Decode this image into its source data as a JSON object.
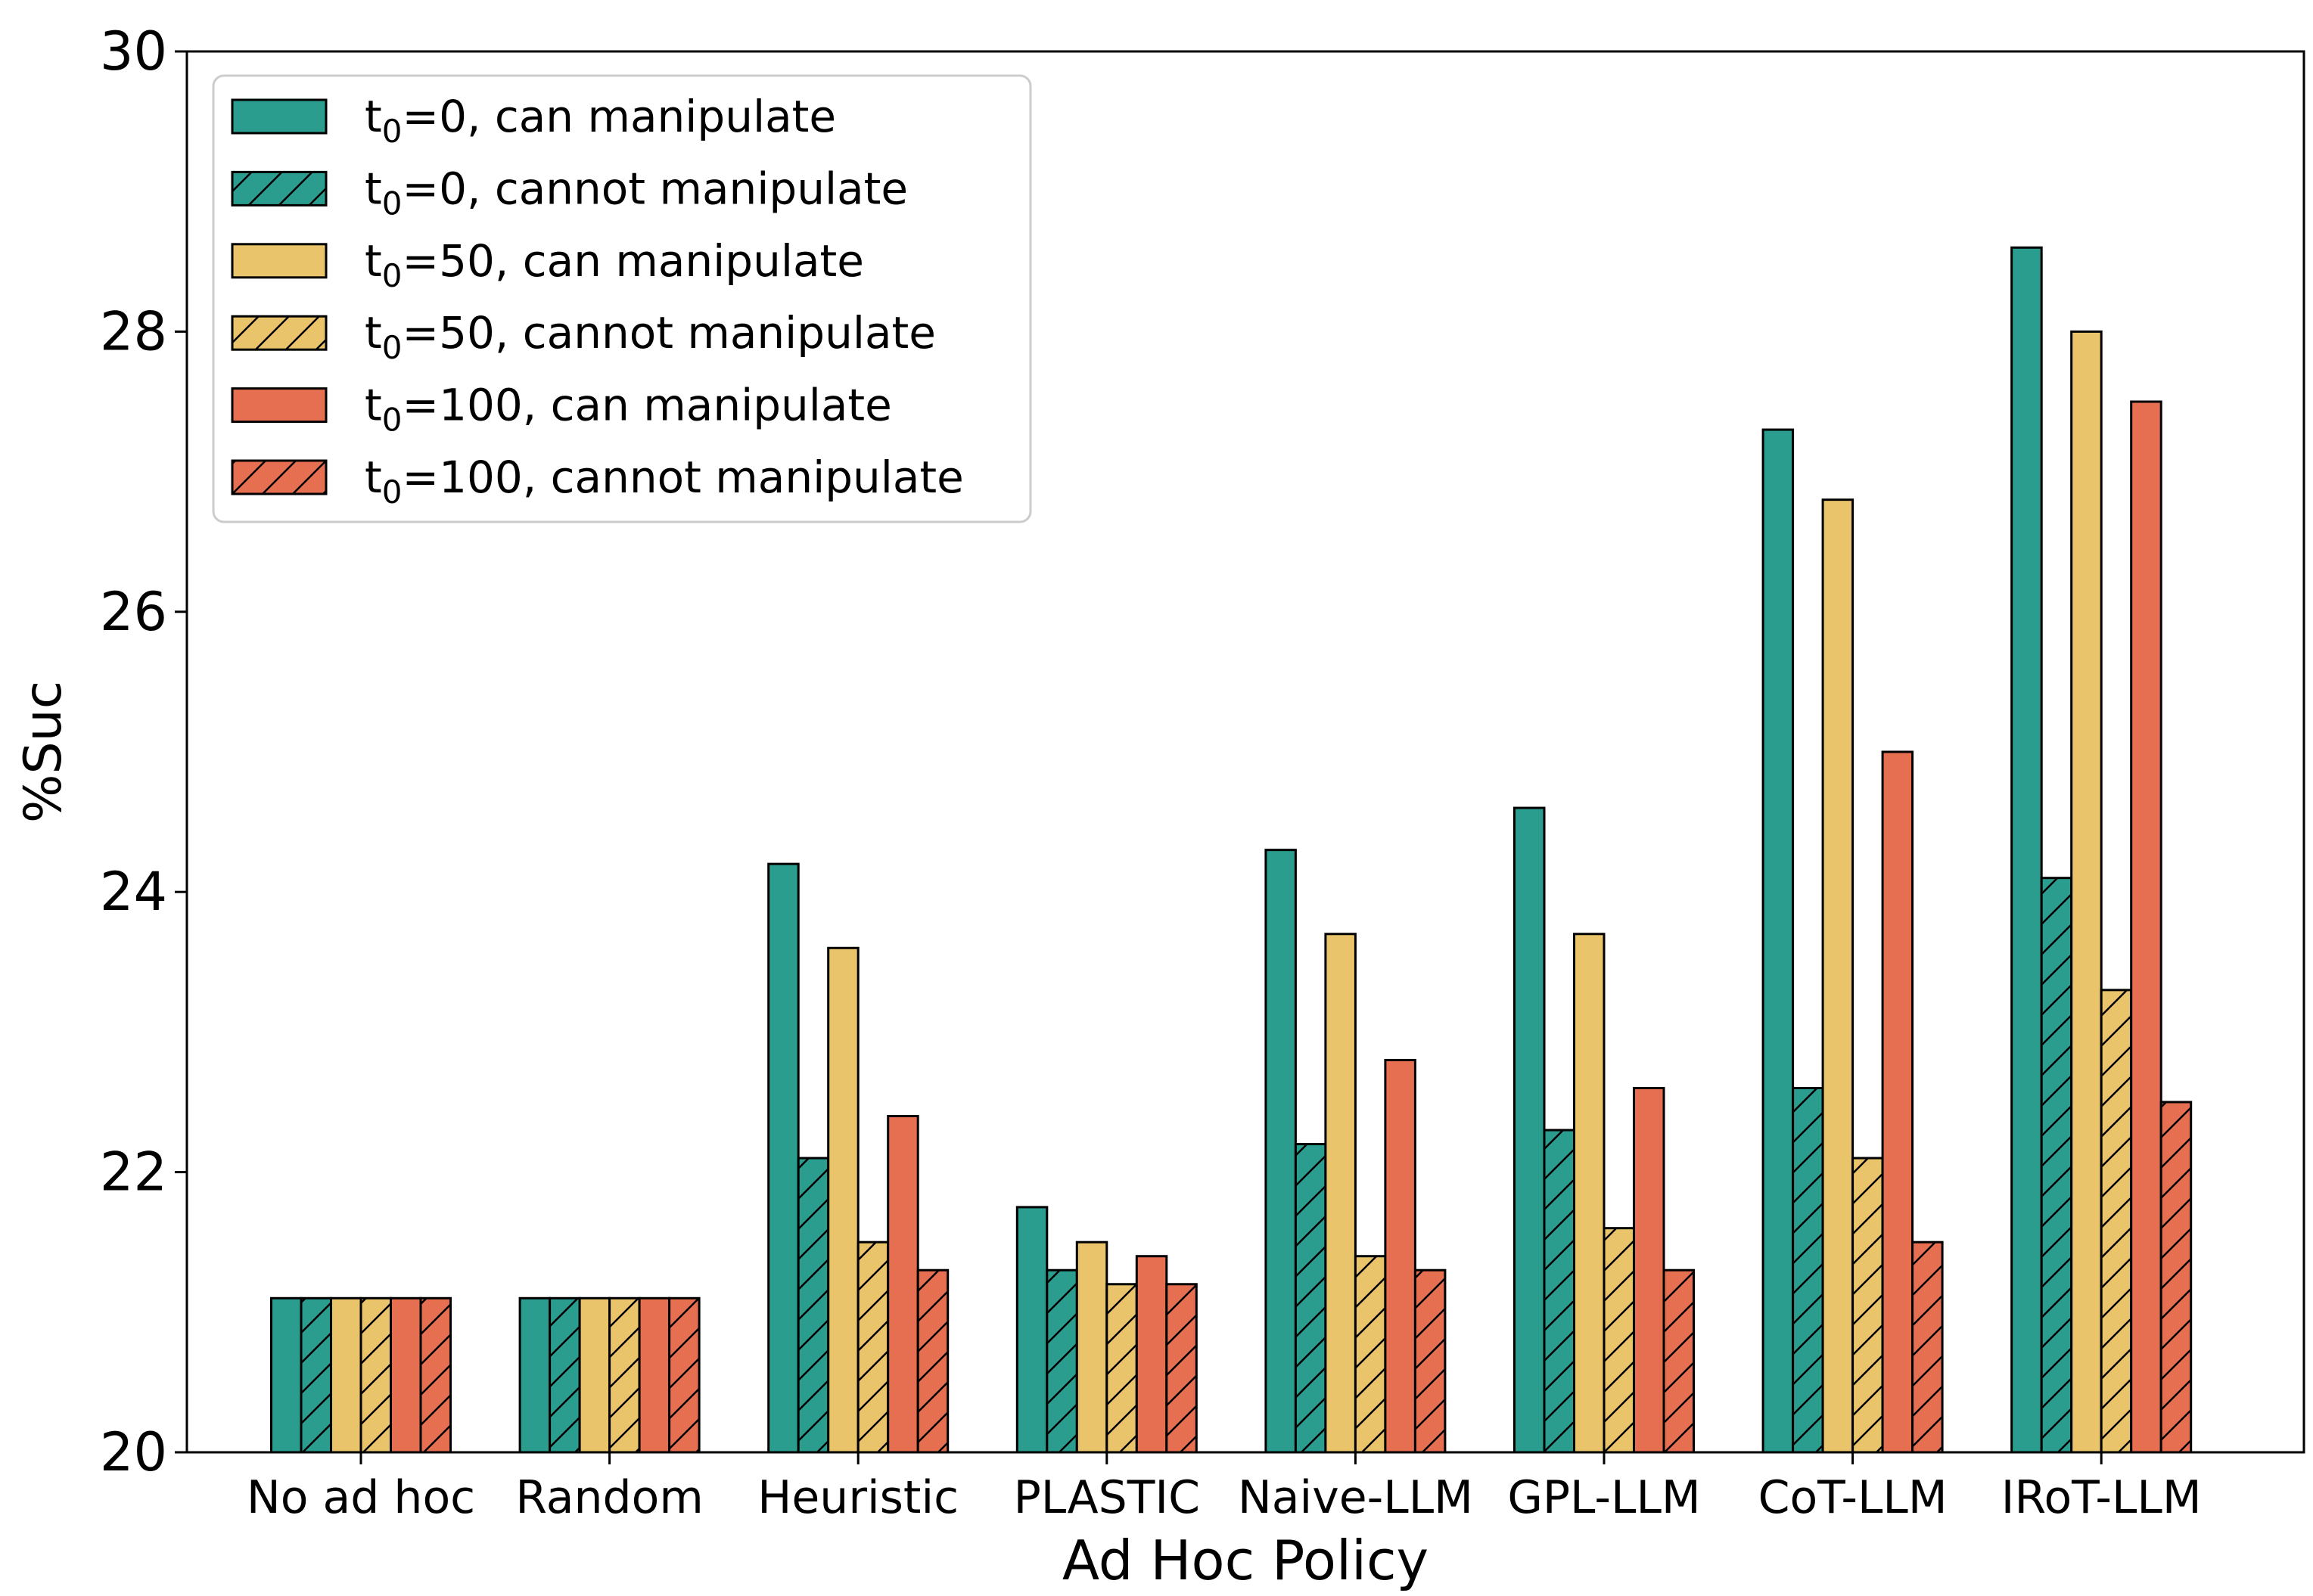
{
  "chart_data": {
    "type": "bar",
    "xlabel": "Ad Hoc Policy",
    "ylabel": "%Suc",
    "ylim": [
      20,
      30
    ],
    "yticks": [
      20,
      22,
      24,
      26,
      28,
      30
    ],
    "grid": false,
    "legend_position": "top-left",
    "categories": [
      "No ad hoc",
      "Random",
      "Heuristic",
      "PLASTIC",
      "Naive-LLM",
      "GPL-LLM",
      "CoT-LLM",
      "IRoT-LLM"
    ],
    "series": [
      {
        "name": "t",
        "sub": "0",
        "rest": "=0, can manipulate",
        "color": "#2a9d8f",
        "hatch": false,
        "values": [
          21.1,
          21.1,
          24.2,
          21.75,
          24.3,
          24.6,
          27.3,
          28.6
        ]
      },
      {
        "name": "t",
        "sub": "0",
        "rest": "=0, cannot manipulate",
        "color": "#2a9d8f",
        "hatch": true,
        "values": [
          21.1,
          21.1,
          22.1,
          21.3,
          22.2,
          22.3,
          22.6,
          24.1
        ]
      },
      {
        "name": "t",
        "sub": "0",
        "rest": "=50, can manipulate",
        "color": "#e9c46a",
        "hatch": false,
        "values": [
          21.1,
          21.1,
          23.6,
          21.5,
          23.7,
          23.7,
          26.8,
          28.0
        ]
      },
      {
        "name": "t",
        "sub": "0",
        "rest": "=50, cannot manipulate",
        "color": "#e9c46a",
        "hatch": true,
        "values": [
          21.1,
          21.1,
          21.5,
          21.2,
          21.4,
          21.6,
          22.1,
          23.3
        ]
      },
      {
        "name": "t",
        "sub": "0",
        "rest": "=100, can manipulate",
        "color": "#e76f51",
        "hatch": false,
        "values": [
          21.1,
          21.1,
          22.4,
          21.4,
          22.8,
          22.6,
          25.0,
          27.5
        ]
      },
      {
        "name": "t",
        "sub": "0",
        "rest": "=100, cannot manipulate",
        "color": "#e76f51",
        "hatch": true,
        "values": [
          21.1,
          21.1,
          21.3,
          21.2,
          21.3,
          21.3,
          21.5,
          22.5
        ]
      }
    ]
  }
}
